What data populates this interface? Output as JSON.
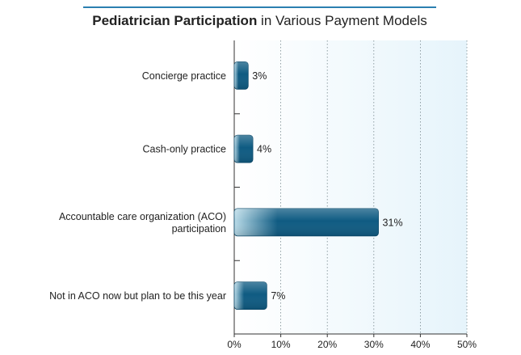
{
  "title": {
    "bold": "Pediatrician Participation",
    "rest": " in Various Payment Models"
  },
  "chart_data": {
    "type": "bar",
    "orientation": "horizontal",
    "categories": [
      [
        "Concierge practice"
      ],
      [
        "Cash-only practice"
      ],
      [
        "Accountable care organization (ACO)",
        "participation"
      ],
      [
        "Not in ACO now but plan to be this year"
      ]
    ],
    "values": [
      3,
      4,
      31,
      7
    ],
    "value_labels": [
      "3%",
      "4%",
      "31%",
      "7%"
    ],
    "xlim": [
      0,
      50
    ],
    "xticks": [
      0,
      10,
      20,
      30,
      40,
      50
    ],
    "xtick_labels": [
      "0%",
      "10%",
      "20%",
      "30%",
      "40%",
      "50%"
    ],
    "grid": "vertical dotted",
    "colors": {
      "bar_dark": "#0f5b82",
      "bar_light": "#b9dbe8",
      "plot_bg_start": "#ffffff",
      "plot_bg_end": "#e6f4fb",
      "title_rule": "#2b7fb0"
    }
  }
}
